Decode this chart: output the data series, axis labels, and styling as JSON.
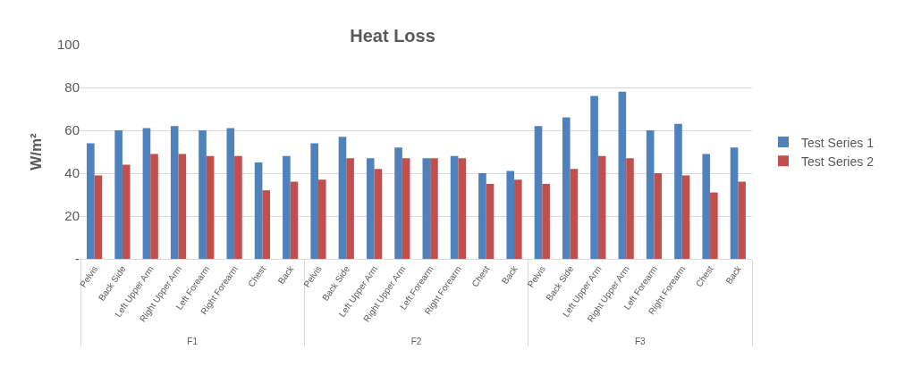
{
  "chart_data": {
    "type": "bar",
    "title": "Heat Loss",
    "ylabel": "W/m²",
    "categories": [
      "Pelvis",
      "Back Side",
      "Left Upper Arm",
      "Right Upper Arm",
      "Left Forearm",
      "Right Forearm",
      "Chest",
      "Back",
      "Pelvis",
      "Back Side",
      "Left Upper Arm",
      "Right Upper Arm",
      "Left Forearm",
      "Right Forearm",
      "Chest",
      "Back",
      "Pelvis",
      "Back Side",
      "Left Upper Arm",
      "Right Upper Arm",
      "Left Forearm",
      "Right Forearm",
      "Chest",
      "Back"
    ],
    "annotations": [
      "F1",
      "F2",
      "F3"
    ],
    "series": [
      {
        "name": "Test Series 1",
        "color": "#4f81bd",
        "values": [
          54,
          60,
          61,
          62,
          60,
          61,
          45,
          48,
          54,
          57,
          47,
          52,
          47,
          48,
          40,
          41,
          62,
          66,
          76,
          78,
          60,
          63,
          49,
          52
        ]
      },
      {
        "name": "Test Series 2",
        "color": "#c0504d",
        "values": [
          39,
          44,
          49,
          49,
          48,
          48,
          32,
          36,
          37,
          47,
          42,
          47,
          47,
          47,
          35,
          37,
          35,
          42,
          48,
          47,
          40,
          39,
          31,
          36
        ]
      }
    ],
    "ylim": [
      0,
      100
    ],
    "yticks": [
      {
        "value": 0,
        "label": "-"
      },
      20,
      40,
      60,
      80,
      100
    ],
    "grid": "y",
    "legend": "right"
  }
}
